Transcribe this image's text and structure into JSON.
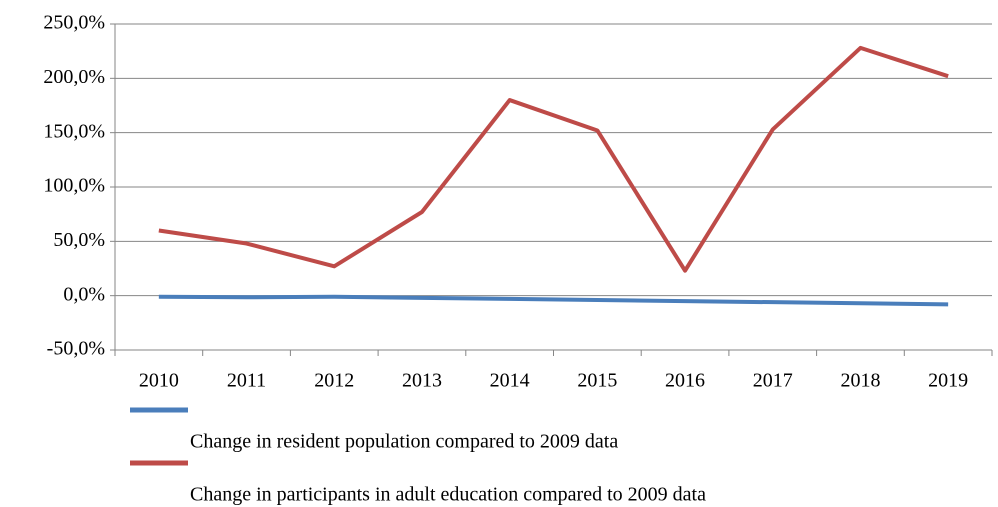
{
  "chart_data": {
    "type": "line",
    "categories": [
      "2010",
      "2011",
      "2012",
      "2013",
      "2014",
      "2015",
      "2016",
      "2017",
      "2018",
      "2019"
    ],
    "series": [
      {
        "name": "Change in resident population compared to 2009 data",
        "color": "#4a7ebb",
        "values": [
          -1,
          -1.5,
          -1,
          -2,
          -3,
          -4,
          -5,
          -6,
          -7,
          -8
        ]
      },
      {
        "name": "Change in participants in adult education compared to 2009 data",
        "color": "#be4b48",
        "values": [
          60,
          48,
          27,
          77,
          180,
          152,
          23,
          153,
          228,
          202
        ]
      }
    ],
    "ylim": [
      -50,
      250
    ],
    "yticks": [
      {
        "value": -50,
        "label": "-50,0%"
      },
      {
        "value": 0,
        "label": "0,0%"
      },
      {
        "value": 50,
        "label": "50,0%"
      },
      {
        "value": 100,
        "label": "100,0%"
      },
      {
        "value": 150,
        "label": "150,0%"
      },
      {
        "value": 200,
        "label": "200,0%"
      },
      {
        "value": 250,
        "label": "250,0%"
      }
    ],
    "grid": true,
    "legend": "bottom"
  }
}
